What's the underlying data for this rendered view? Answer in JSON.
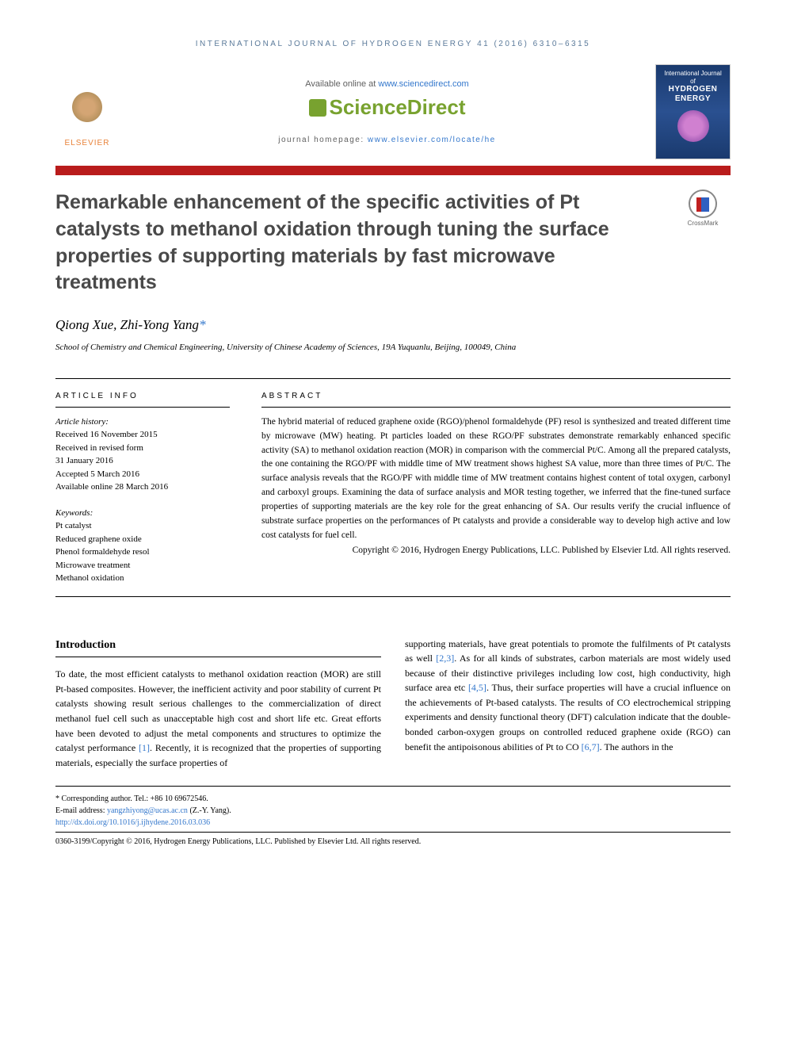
{
  "journal_header": "INTERNATIONAL JOURNAL OF HYDROGEN ENERGY 41 (2016) 6310–6315",
  "available_prefix": "Available online at ",
  "available_link": "www.sciencedirect.com",
  "sciencedirect": "ScienceDirect",
  "homepage_prefix": "journal homepage: ",
  "homepage_link": "www.elsevier.com/locate/he",
  "elsevier_label": "ELSEVIER",
  "cover_small": "International Journal of",
  "cover_main1": "HYDROGEN",
  "cover_main2": "ENERGY",
  "crossmark": "CrossMark",
  "title": "Remarkable enhancement of the specific activities of Pt catalysts to methanol oxidation through tuning the surface properties of supporting materials by fast microwave treatments",
  "authors": "Qiong Xue, Zhi-Yong Yang",
  "corr_ast": "*",
  "affiliation": "School of Chemistry and Chemical Engineering, University of Chinese Academy of Sciences, 19A Yuquanlu, Beijing, 100049, China",
  "info_label": "ARTICLE INFO",
  "abstract_label": "ABSTRACT",
  "history_head": "Article history:",
  "history": {
    "received": "Received 16 November 2015",
    "revised1": "Received in revised form",
    "revised2": "31 January 2016",
    "accepted": "Accepted 5 March 2016",
    "online": "Available online 28 March 2016"
  },
  "keywords_head": "Keywords:",
  "keywords": {
    "k1": "Pt catalyst",
    "k2": "Reduced graphene oxide",
    "k3": "Phenol formaldehyde resol",
    "k4": "Microwave treatment",
    "k5": "Methanol oxidation"
  },
  "abstract_text": "The hybrid material of reduced graphene oxide (RGO)/phenol formaldehyde (PF) resol is synthesized and treated different time by microwave (MW) heating. Pt particles loaded on these RGO/PF substrates demonstrate remarkably enhanced specific activity (SA) to methanol oxidation reaction (MOR) in comparison with the commercial Pt/C. Among all the prepared catalysts, the one containing the RGO/PF with middle time of MW treatment shows highest SA value, more than three times of Pt/C. The surface analysis reveals that the RGO/PF with middle time of MW treatment contains highest content of total oxygen, carbonyl and carboxyl groups. Examining the data of surface analysis and MOR testing together, we inferred that the fine-tuned surface properties of supporting materials are the key role for the great enhancing of SA. Our results verify the crucial influence of substrate surface properties on the performances of Pt catalysts and provide a considerable way to develop high active and low cost catalysts for fuel cell.",
  "abstract_copyright": "Copyright © 2016, Hydrogen Energy Publications, LLC. Published by Elsevier Ltd. All rights reserved.",
  "intro_heading": "Introduction",
  "intro_col1_p1a": "To date, the most efficient catalysts to methanol oxidation reaction (MOR) are still Pt-based composites. However, the inefficient activity and poor stability of current Pt catalysts showing result serious challenges to the commercialization of direct methanol fuel cell such as unacceptable high cost and short life etc. Great efforts have been devoted to adjust the metal components and structures to optimize the catalyst performance ",
  "ref1": "[1]",
  "intro_col1_p1b": ". Recently, it is recognized that the properties of supporting materials, especially the surface properties of",
  "intro_col2_p1a": "supporting materials, have great potentials to promote the fulfilments of Pt catalysts as well ",
  "ref23": "[2,3]",
  "intro_col2_p1b": ". As for all kinds of substrates, carbon materials are most widely used because of their distinctive privileges including low cost, high conductivity, high surface area etc ",
  "ref45": "[4,5]",
  "intro_col2_p1c": ". Thus, their surface properties will have a crucial influence on the achievements of Pt-based catalysts. The results of CO electrochemical stripping experiments and density functional theory (DFT) calculation indicate that the double-bonded carbon-oxygen groups on controlled reduced graphene oxide (RGO) can benefit the antipoisonous abilities of Pt to CO ",
  "ref67": "[6,7]",
  "intro_col2_p1d": ". The authors in the",
  "footer": {
    "corr": "* Corresponding author. Tel.: +86 10 69672546.",
    "email_label": "E-mail address: ",
    "email": "yangzhiyong@ucas.ac.cn",
    "email_name": " (Z.-Y. Yang).",
    "doi": "http://dx.doi.org/10.1016/j.ijhydene.2016.03.036",
    "copyright": "0360-3199/Copyright © 2016, Hydrogen Energy Publications, LLC. Published by Elsevier Ltd. All rights reserved."
  },
  "colors": {
    "journal_header": "#5b7a9a",
    "link": "#3377cc",
    "sciencedirect": "#78a22f",
    "elsevier": "#e8833a",
    "redbar": "#b91c1c",
    "title": "#494949"
  }
}
